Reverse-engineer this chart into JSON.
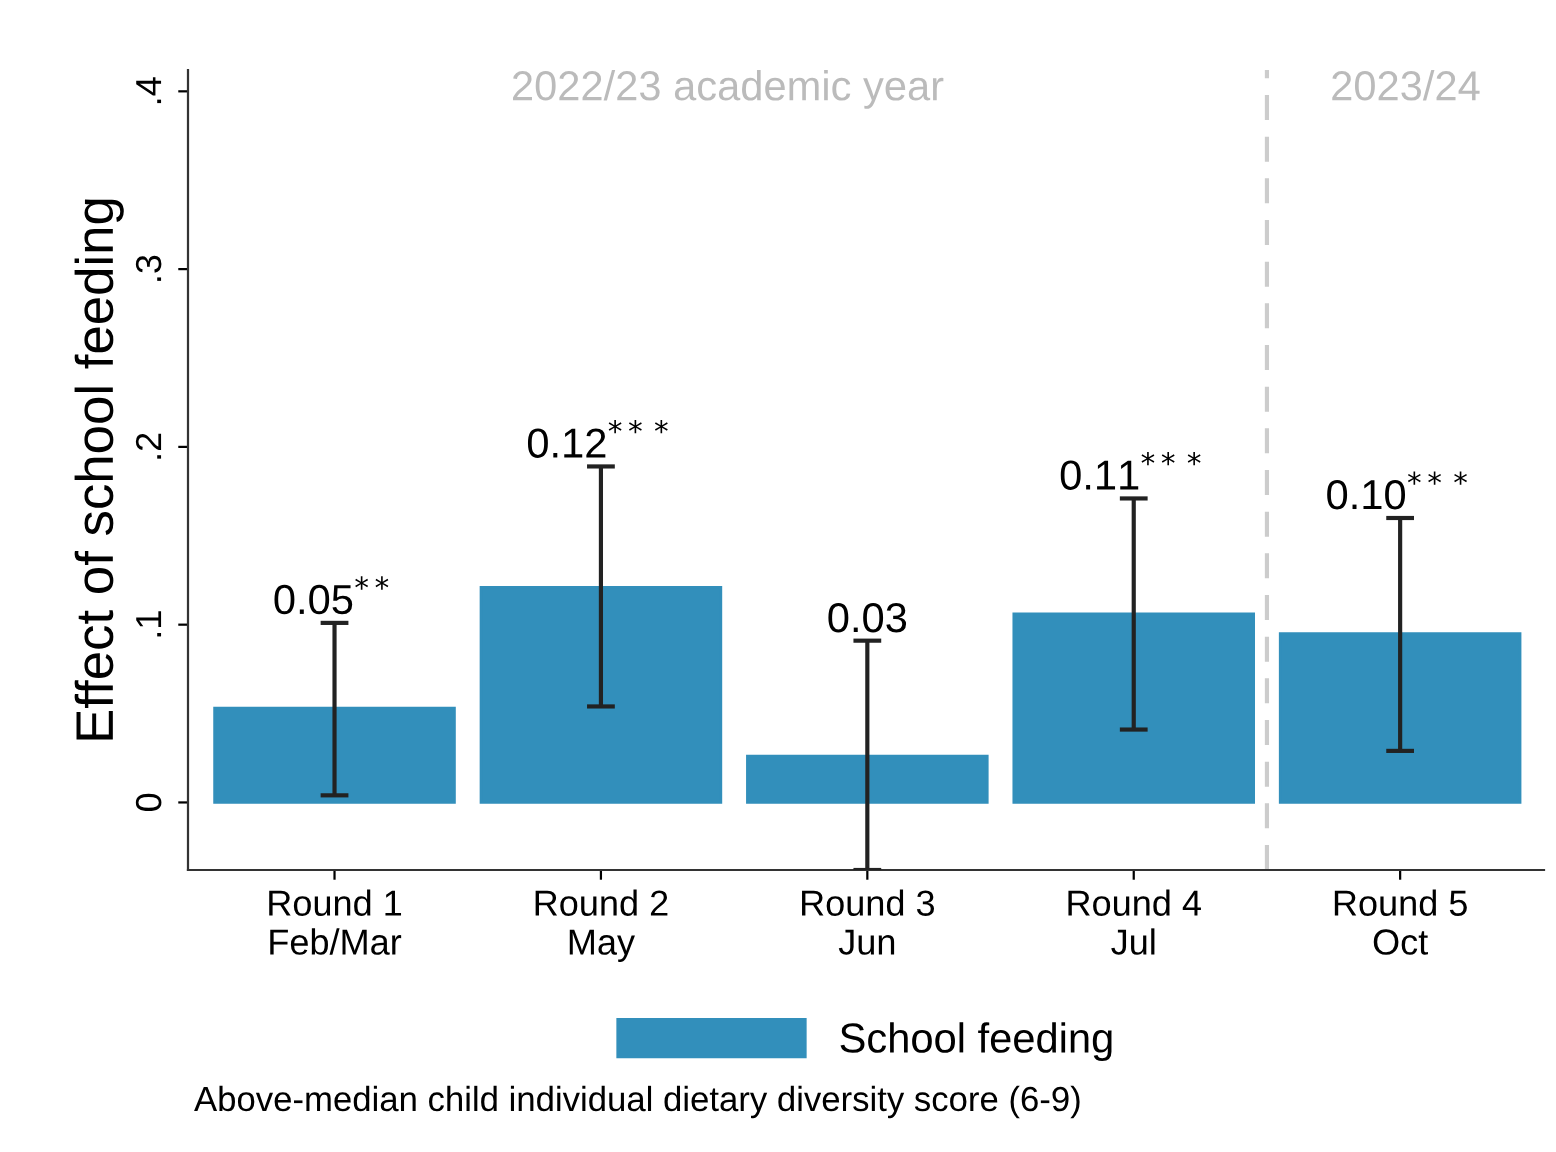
{
  "chart_data": {
    "type": "bar",
    "ylabel": "Effect of school feeding",
    "categories": [
      "Round 1\nFeb/Mar",
      "Round 2\nMay",
      "Round 3\nJun",
      "Round 4\nJul",
      "Round 5\nOct"
    ],
    "series": [
      {
        "name": "School feeding",
        "color": "#328fbb",
        "values": [
          0.053,
          0.121,
          0.026,
          0.106,
          0.095
        ],
        "errors": [
          [
            0.004,
            0.101
          ],
          [
            0.054,
            0.189
          ],
          [
            -0.038,
            0.091
          ],
          [
            0.041,
            0.171
          ],
          [
            0.029,
            0.16
          ]
        ],
        "value_labels": [
          "0.05$^{**}$",
          "0.12$^{***}$",
          "0.03",
          "0.11$^{***}$",
          "0.10$^{***}$"
        ]
      }
    ],
    "ylim": [
      -0.038,
      0.412
    ],
    "yticks": [
      {
        "value": 0,
        "label": "0"
      },
      {
        "value": 0.1,
        "label": ".1"
      },
      {
        "value": 0.2,
        "label": ".2"
      },
      {
        "value": 0.3,
        "label": ".3"
      },
      {
        "value": 0.4,
        "label": ".4"
      }
    ],
    "annotations": [
      "2022/23 academic year",
      "2023/24",
      "Above-median child individual dietary diversity score (6-9)"
    ],
    "grid": false,
    "legend": "bottom"
  }
}
